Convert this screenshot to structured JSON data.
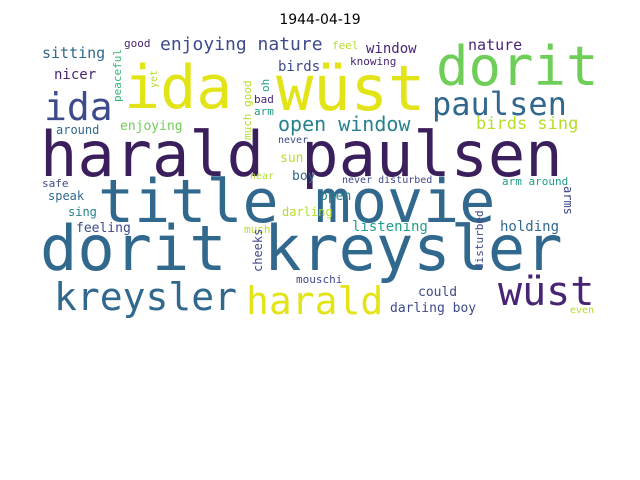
{
  "title": "1944-04-19",
  "colors": {
    "dark_purple": "#482475",
    "deep_purple": "#3b1f5c",
    "slate_blue": "#3e4a89",
    "steel_blue": "#31688e",
    "teal": "#26828e",
    "green_teal": "#1f9e89",
    "green": "#35b779",
    "light_green": "#6ece58",
    "lime": "#b5de2b",
    "yellow": "#e3e418"
  },
  "words": [
    "harald paulsen",
    "title movie",
    "dorit kreysler",
    "ida",
    "wüst",
    "dorit",
    "kreysler",
    "harald",
    "wüst",
    "paulsen",
    "ida",
    "open window",
    "enjoying nature",
    "birds sing",
    "nature",
    "window",
    "sitting",
    "good",
    "feel",
    "knowing",
    "peaceful",
    "yet",
    "oh",
    "nicer",
    "birds",
    "bad",
    "arm",
    "much good",
    "around",
    "enjoying",
    "never",
    "safe",
    "sun",
    "near",
    "boy",
    "never disturbed",
    "arm around",
    "speak",
    "open",
    "darling",
    "arms",
    "sing",
    "feeling",
    "much",
    "listening",
    "holding",
    "cheeks",
    "disturbed",
    "mouschi",
    "could",
    "darling boy",
    "even"
  ]
}
